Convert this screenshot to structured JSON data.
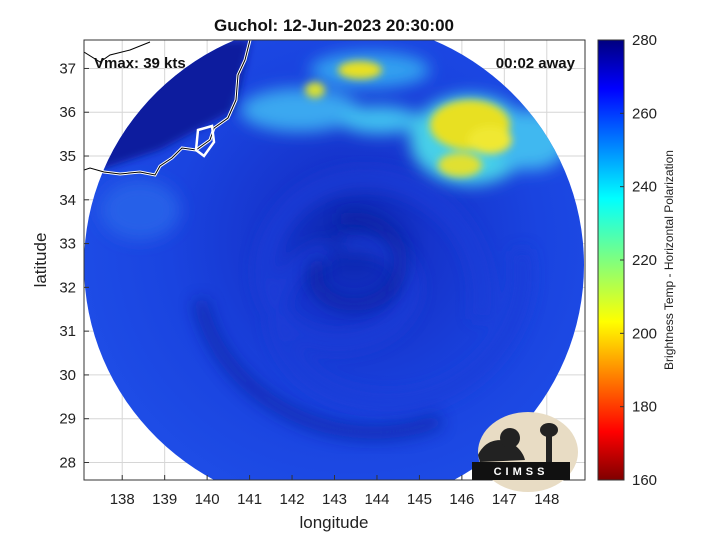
{
  "title": "Guchol: 12-Jun-2023 20:30:00",
  "annotations": {
    "vmax": "Vmax: 39 kts",
    "away": "00:02 away"
  },
  "axes": {
    "xlabel": "longitude",
    "ylabel": "latitude",
    "xlim": [
      137.1,
      148.9
    ],
    "ylim": [
      27.6,
      37.65
    ],
    "xticks": [
      "138",
      "139",
      "140",
      "141",
      "142",
      "143",
      "144",
      "145",
      "146",
      "147",
      "148"
    ],
    "yticks": [
      "28",
      "29",
      "30",
      "31",
      "32",
      "33",
      "34",
      "35",
      "36",
      "37"
    ],
    "grid": true
  },
  "colorbar": {
    "label": "Brightness Temp - Horizontal Polarization",
    "min": 160,
    "max": 280,
    "ticks": [
      "280",
      "260",
      "240",
      "220",
      "200",
      "180",
      "160"
    ],
    "colormap": "jet",
    "orientation": "vertical"
  },
  "logo": {
    "text": "CIMSS"
  },
  "colors": {
    "background_field": "#1030d8",
    "cold_core": "#0a1fa8",
    "coast": "#ffffff",
    "warm_patch": "#e8e020",
    "cyan_patch": "#40c0f0"
  }
}
